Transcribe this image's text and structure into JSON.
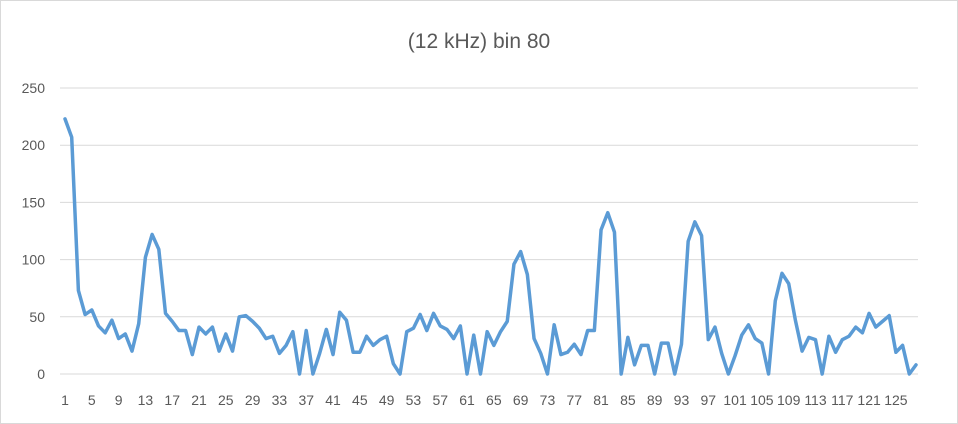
{
  "chart_data": {
    "type": "line",
    "title": "(12 kHz) bin 80",
    "xlabel": "",
    "ylabel": "",
    "ylim": [
      0,
      250
    ],
    "yticks": [
      0,
      50,
      100,
      150,
      200,
      250
    ],
    "x": [
      1,
      2,
      3,
      4,
      5,
      6,
      7,
      8,
      9,
      10,
      11,
      12,
      13,
      14,
      15,
      16,
      17,
      18,
      19,
      20,
      21,
      22,
      23,
      24,
      25,
      26,
      27,
      28,
      29,
      30,
      31,
      32,
      33,
      34,
      35,
      36,
      37,
      38,
      39,
      40,
      41,
      42,
      43,
      44,
      45,
      46,
      47,
      48,
      49,
      50,
      51,
      52,
      53,
      54,
      55,
      56,
      57,
      58,
      59,
      60,
      61,
      62,
      63,
      64,
      65,
      66,
      67,
      68,
      69,
      70,
      71,
      72,
      73,
      74,
      75,
      76,
      77,
      78,
      79,
      80,
      81,
      82,
      83,
      84,
      85,
      86,
      87,
      88,
      89,
      90,
      91,
      92,
      93,
      94,
      95,
      96,
      97,
      98,
      99,
      100,
      101,
      102,
      103,
      104,
      105,
      106,
      107,
      108,
      109,
      110,
      111,
      112,
      113,
      114,
      115,
      116,
      117,
      118,
      119,
      120,
      121,
      122,
      123,
      124,
      125,
      126,
      127,
      128
    ],
    "xtick_labels": [
      "1",
      "5",
      "9",
      "13",
      "17",
      "21",
      "25",
      "29",
      "33",
      "37",
      "41",
      "45",
      "49",
      "53",
      "57",
      "61",
      "65",
      "69",
      "73",
      "77",
      "81",
      "85",
      "89",
      "93",
      "97",
      "101",
      "105",
      "109",
      "113",
      "117",
      "121",
      "125"
    ],
    "series": [
      {
        "name": "",
        "color": "#5b9bd5",
        "values": [
          223,
          207,
          73,
          52,
          56,
          42,
          36,
          47,
          31,
          35,
          20,
          44,
          102,
          122,
          109,
          53,
          46,
          38,
          38,
          17,
          41,
          35,
          41,
          20,
          35,
          20,
          50,
          51,
          46,
          40,
          31,
          33,
          18,
          25,
          37,
          0,
          38,
          0,
          18,
          39,
          17,
          54,
          47,
          19,
          19,
          33,
          25,
          30,
          33,
          9,
          0,
          37,
          40,
          52,
          38,
          53,
          42,
          39,
          31,
          42,
          0,
          34,
          0,
          37,
          25,
          37,
          46,
          96,
          107,
          87,
          31,
          18,
          0,
          43,
          17,
          19,
          26,
          17,
          38,
          38,
          126,
          141,
          124,
          0,
          32,
          8,
          25,
          25,
          0,
          27,
          27,
          0,
          26,
          116,
          133,
          121,
          30,
          41,
          18,
          0,
          16,
          34,
          43,
          31,
          27,
          0,
          64,
          88,
          79,
          47,
          20,
          32,
          30,
          0,
          33,
          19,
          30,
          33,
          41,
          36,
          53,
          41,
          46,
          51,
          19,
          25,
          0,
          8
        ]
      }
    ]
  }
}
